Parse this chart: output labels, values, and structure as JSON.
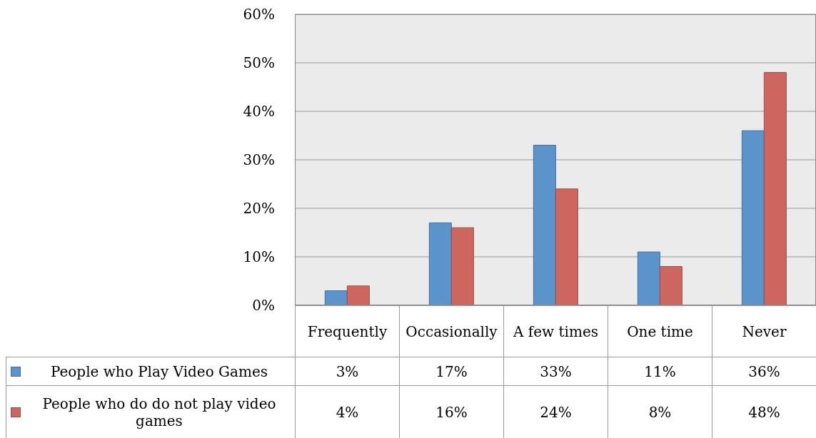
{
  "chart_data": {
    "type": "bar",
    "categories": [
      "Frequently",
      "Occasionally",
      "A few times",
      "One time",
      "Never"
    ],
    "series": [
      {
        "name": "People who Play Video Games",
        "color": "#5b93cb",
        "values": [
          3,
          17,
          33,
          11,
          36
        ],
        "value_labels": [
          "3%",
          "17%",
          "33%",
          "11%",
          "36%"
        ]
      },
      {
        "name": "People who do do not play video games",
        "color": "#cd665f",
        "values": [
          4,
          16,
          24,
          8,
          48
        ],
        "value_labels": [
          "4%",
          "16%",
          "24%",
          "8%",
          "48%"
        ]
      }
    ],
    "ylim": [
      0,
      60
    ],
    "yticks": [
      {
        "value": 0,
        "label": "0%"
      },
      {
        "value": 10,
        "label": "10%"
      },
      {
        "value": 20,
        "label": "20%"
      },
      {
        "value": 30,
        "label": "30%"
      },
      {
        "value": 40,
        "label": "40%"
      },
      {
        "value": 50,
        "label": "50%"
      },
      {
        "value": 60,
        "label": "60%"
      }
    ],
    "grid": "y",
    "legend": "bottom left"
  }
}
